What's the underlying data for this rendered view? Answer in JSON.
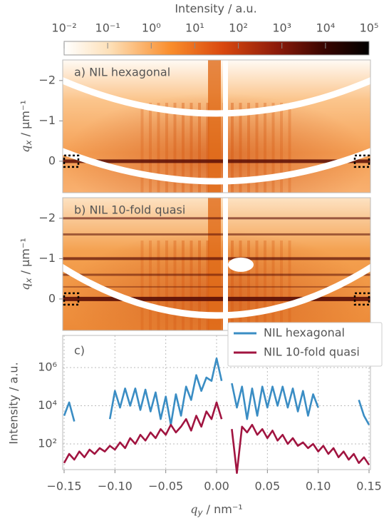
{
  "chart_data": [
    {
      "type": "colorbar",
      "title": "Intensity / a.u.",
      "log_x": true,
      "xlim": [
        0.01,
        100000
      ],
      "xticks": [
        {
          "value": 0.01,
          "label": "10⁻²"
        },
        {
          "value": 0.1,
          "label": "10⁻¹"
        },
        {
          "value": 1,
          "label": "10⁰"
        },
        {
          "value": 10,
          "label": "10¹"
        },
        {
          "value": 100,
          "label": "10²"
        },
        {
          "value": 1000,
          "label": "10³"
        },
        {
          "value": 10000,
          "label": "10⁴"
        },
        {
          "value": 100000,
          "label": "10⁵"
        }
      ]
    },
    {
      "type": "image",
      "annotation": "a) NIL hexagonal",
      "ylabel": [
        "q",
        "x",
        " / µm⁻¹"
      ],
      "ylim": [
        0.78,
        -2.51
      ],
      "yticks": [
        {
          "value": -2,
          "label": "−2"
        },
        {
          "value": -1,
          "label": "−1"
        },
        0
      ]
    },
    {
      "type": "image",
      "annotation": "b) NIL 10-fold quasi",
      "ylabel": [
        "q",
        "x",
        " / µm⁻¹"
      ],
      "ylim": [
        0.78,
        -2.51
      ],
      "yticks": [
        {
          "value": -2,
          "label": "−2"
        },
        {
          "value": -1,
          "label": "−1"
        },
        0
      ]
    },
    {
      "type": "line",
      "annotation": "c)",
      "xlabel": [
        "q",
        "y",
        " / nm⁻¹"
      ],
      "ylabel": "Intensity / a.u.",
      "log_y": true,
      "grid": true,
      "legend": "upper right",
      "xlim": [
        -0.15,
        0.15
      ],
      "ylim": [
        4.5,
        48000000
      ],
      "xticks": [
        {
          "value": -0.15,
          "label": "−0.15"
        },
        {
          "value": -0.1,
          "label": "−0.10"
        },
        {
          "value": -0.05,
          "label": "−0.05"
        },
        {
          "value": 0,
          "label": "0.00"
        },
        0.05,
        {
          "value": 0.1,
          "label": "0.10"
        },
        0.15
      ],
      "yticks": [
        {
          "value": 100,
          "label": "10²"
        },
        {
          "value": 10000,
          "label": "10⁴"
        },
        {
          "value": 1000000,
          "label": "10⁶"
        }
      ],
      "x": [
        -0.15,
        -0.145,
        -0.14,
        -0.135,
        -0.13,
        -0.125,
        -0.12,
        -0.115,
        -0.11,
        -0.105,
        -0.1,
        -0.095,
        -0.09,
        -0.085,
        -0.08,
        -0.075,
        -0.07,
        -0.065,
        -0.06,
        -0.055,
        -0.05,
        -0.045,
        -0.04,
        -0.035,
        -0.03,
        -0.025,
        -0.02,
        -0.015,
        -0.01,
        -0.005,
        0,
        0.005,
        0.01,
        0.015,
        0.02,
        0.025,
        0.03,
        0.035,
        0.04,
        0.045,
        0.05,
        0.055,
        0.06,
        0.065,
        0.07,
        0.075,
        0.08,
        0.085,
        0.09,
        0.095,
        0.1,
        0.105,
        0.11,
        0.115,
        0.12,
        0.125,
        0.13,
        0.135,
        0.14,
        0.145,
        0.15
      ],
      "series": [
        {
          "name": "NIL hexagonal",
          "color": "#3a8dc4",
          "values": [
            3000,
            15000,
            1500,
            null,
            null,
            null,
            null,
            null,
            null,
            2000,
            60000,
            8000,
            80000,
            10000,
            80000,
            6000,
            70000,
            5000,
            50000,
            2000,
            30000,
            1000,
            40000,
            3000,
            100000,
            20000,
            400000,
            60000,
            300000,
            200000,
            3000000,
            200000,
            null,
            150000,
            8000,
            100000,
            2000,
            80000,
            3000,
            100000,
            8000,
            100000,
            10000,
            100000,
            8000,
            80000,
            5000,
            60000,
            3000,
            40000,
            8000,
            null,
            null,
            null,
            null,
            null,
            null,
            null,
            20000,
            3000,
            1000
          ]
        },
        {
          "name": "NIL 10-fold quasi",
          "color": "#a11440",
          "values": [
            10,
            30,
            15,
            40,
            20,
            50,
            30,
            60,
            40,
            80,
            50,
            120,
            60,
            200,
            100,
            300,
            150,
            400,
            200,
            600,
            300,
            1000,
            400,
            800,
            2000,
            500,
            3000,
            800,
            5000,
            2000,
            15000,
            2000,
            null,
            600,
            3,
            800,
            400,
            1000,
            300,
            600,
            200,
            500,
            150,
            300,
            100,
            200,
            80,
            120,
            60,
            100,
            40,
            80,
            30,
            60,
            20,
            40,
            15,
            30,
            10,
            20,
            8
          ]
        }
      ]
    }
  ]
}
